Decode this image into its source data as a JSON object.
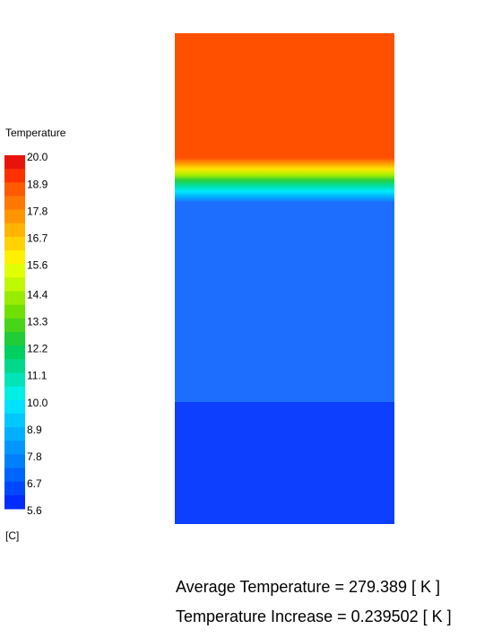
{
  "legend": {
    "title": "Temperature",
    "levels": [
      {
        "value": 20.0,
        "label": "20.0"
      },
      {
        "value": 18.9,
        "label": "18.9"
      },
      {
        "value": 17.8,
        "label": "17.8"
      },
      {
        "value": 16.7,
        "label": "16.7"
      },
      {
        "value": 15.6,
        "label": "15.6"
      },
      {
        "value": 14.4,
        "label": "14.4"
      },
      {
        "value": 13.3,
        "label": "13.3"
      },
      {
        "value": 12.2,
        "label": "12.2"
      },
      {
        "value": 11.1,
        "label": "11.1"
      },
      {
        "value": 10.0,
        "label": "10.0"
      },
      {
        "value": 8.9,
        "label": "8.9"
      },
      {
        "value": 7.8,
        "label": "7.8"
      },
      {
        "value": 6.7,
        "label": "6.7"
      },
      {
        "value": 5.6,
        "label": "5.6"
      }
    ],
    "unit": "[C]"
  },
  "annotations": [
    "Average Temperature = 279.389 [ K ]",
    "Temperature Increase = 0.239502 [ K ]"
  ]
}
